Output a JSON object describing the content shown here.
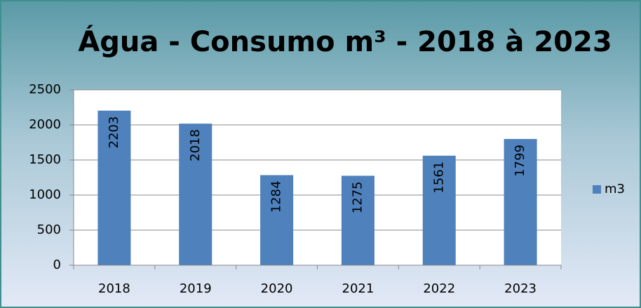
{
  "chart_data": {
    "type": "bar",
    "title": "Água - Consumo m³ - 2018 à 2023",
    "categories": [
      "2018",
      "2019",
      "2020",
      "2021",
      "2022",
      "2023"
    ],
    "series": [
      {
        "name": "m3",
        "color": "#4f81bd",
        "values": [
          2203,
          2018,
          1284,
          1275,
          1561,
          1799
        ]
      }
    ],
    "ylim": [
      0,
      2500
    ],
    "yticks": [
      0,
      500,
      1000,
      1500,
      2000,
      2500
    ],
    "grid": true,
    "legend": "right"
  }
}
